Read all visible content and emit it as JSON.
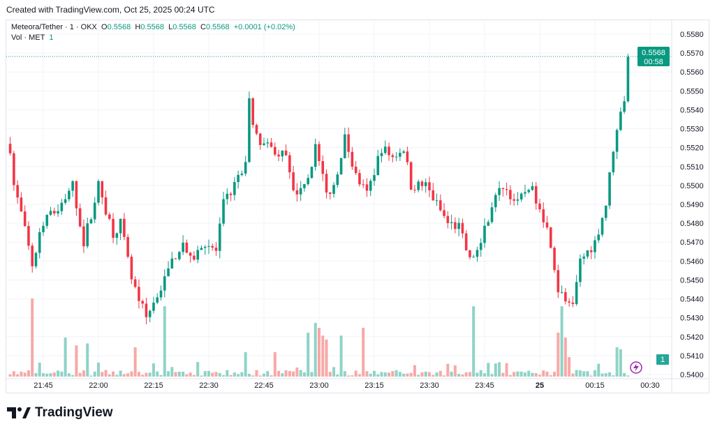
{
  "created_text": "Created with TradingView.com, Oct 25, 2025 00:24 UTC",
  "legend": {
    "symbol": "Meteora/Tether · 1 · OKX",
    "o_label": "O",
    "o": "0.5568",
    "h_label": "H",
    "h": "0.5568",
    "l_label": "L",
    "l": "0.5568",
    "c_label": "C",
    "c": "0.5568",
    "change": "+0.0001 (+0.02%)",
    "vol_label": "Vol · MET",
    "vol": "1"
  },
  "price_tag": {
    "price": "0.5568",
    "countdown": "00:58"
  },
  "volume_tag": "1",
  "logo_text": "TradingView",
  "colors": {
    "up": "#089981",
    "down": "#f23645",
    "vol_up": "#8fd3c7",
    "vol_down": "#f7a9a7",
    "accent": "#9c27b0"
  },
  "chart_data": {
    "type": "candlestick",
    "title": "Meteora/Tether · 1 · OKX",
    "x_unit": "minutes since 21:00 (Oct 24 UTC)",
    "x_range": [
      36,
      204
    ],
    "ylim": [
      0.54,
      0.558
    ],
    "y_ticks": [
      "0.5580",
      "0.5570",
      "0.5560",
      "0.5550",
      "0.5540",
      "0.5530",
      "0.5520",
      "0.5510",
      "0.5500",
      "0.5490",
      "0.5480",
      "0.5470",
      "0.5460",
      "0.5450",
      "0.5440",
      "0.5430",
      "0.5420",
      "0.5410",
      "0.5400"
    ],
    "x_ticks": [
      {
        "t": 45,
        "label": "21:45"
      },
      {
        "t": 60,
        "label": "22:00"
      },
      {
        "t": 75,
        "label": "22:15"
      },
      {
        "t": 90,
        "label": "22:30"
      },
      {
        "t": 105,
        "label": "22:45"
      },
      {
        "t": 120,
        "label": "23:00"
      },
      {
        "t": 135,
        "label": "23:15"
      },
      {
        "t": 150,
        "label": "23:30"
      },
      {
        "t": 165,
        "label": "23:45"
      },
      {
        "t": 180,
        "label": "25"
      },
      {
        "t": 195,
        "label": "00:15"
      },
      {
        "t": 210,
        "label": "00:30"
      }
    ],
    "close_keypoints": [
      [
        36,
        0.552
      ],
      [
        37,
        0.55
      ],
      [
        39,
        0.5485
      ],
      [
        42,
        0.5458
      ],
      [
        45,
        0.548
      ],
      [
        50,
        0.549
      ],
      [
        53,
        0.55
      ],
      [
        56,
        0.547
      ],
      [
        60,
        0.55
      ],
      [
        64,
        0.5475
      ],
      [
        66,
        0.548
      ],
      [
        69,
        0.545
      ],
      [
        73,
        0.543
      ],
      [
        78,
        0.545
      ],
      [
        80,
        0.546
      ],
      [
        83,
        0.547
      ],
      [
        85,
        0.546
      ],
      [
        89,
        0.547
      ],
      [
        92,
        0.5465
      ],
      [
        94,
        0.549
      ],
      [
        97,
        0.55
      ],
      [
        100,
        0.551
      ],
      [
        101,
        0.5545
      ],
      [
        103,
        0.5525
      ],
      [
        106,
        0.552
      ],
      [
        111,
        0.5515
      ],
      [
        113,
        0.5495
      ],
      [
        117,
        0.5505
      ],
      [
        119,
        0.552
      ],
      [
        122,
        0.5495
      ],
      [
        124,
        0.55
      ],
      [
        127,
        0.5525
      ],
      [
        130,
        0.5505
      ],
      [
        133,
        0.5495
      ],
      [
        137,
        0.552
      ],
      [
        140,
        0.5515
      ],
      [
        143,
        0.552
      ],
      [
        145,
        0.55
      ],
      [
        149,
        0.55
      ],
      [
        152,
        0.549
      ],
      [
        155,
        0.548
      ],
      [
        158,
        0.5478
      ],
      [
        161,
        0.546
      ],
      [
        164,
        0.547
      ],
      [
        167,
        0.549
      ],
      [
        170,
        0.55
      ],
      [
        174,
        0.549
      ],
      [
        177,
        0.55
      ],
      [
        180,
        0.549
      ],
      [
        183,
        0.547
      ],
      [
        185,
        0.5445
      ],
      [
        189,
        0.5435
      ],
      [
        191,
        0.546
      ],
      [
        195,
        0.547
      ],
      [
        198,
        0.549
      ],
      [
        200,
        0.552
      ],
      [
        203,
        0.5545
      ],
      [
        204,
        0.5568
      ]
    ],
    "volume_spikes": [
      [
        42,
        0.8
      ],
      [
        51,
        0.4
      ],
      [
        54,
        0.32
      ],
      [
        57,
        0.34
      ],
      [
        70,
        0.3
      ],
      [
        78,
        0.72
      ],
      [
        100,
        0.25
      ],
      [
        108,
        0.25
      ],
      [
        117,
        0.45
      ],
      [
        119,
        0.55
      ],
      [
        120,
        0.5
      ],
      [
        121,
        0.42
      ],
      [
        122,
        0.38
      ],
      [
        126,
        0.42
      ],
      [
        132,
        0.5
      ],
      [
        162,
        0.72
      ],
      [
        185,
        0.45
      ],
      [
        186,
        0.72
      ],
      [
        187,
        0.4
      ],
      [
        188,
        0.2
      ],
      [
        201,
        0.3
      ],
      [
        202,
        0.28
      ]
    ]
  }
}
